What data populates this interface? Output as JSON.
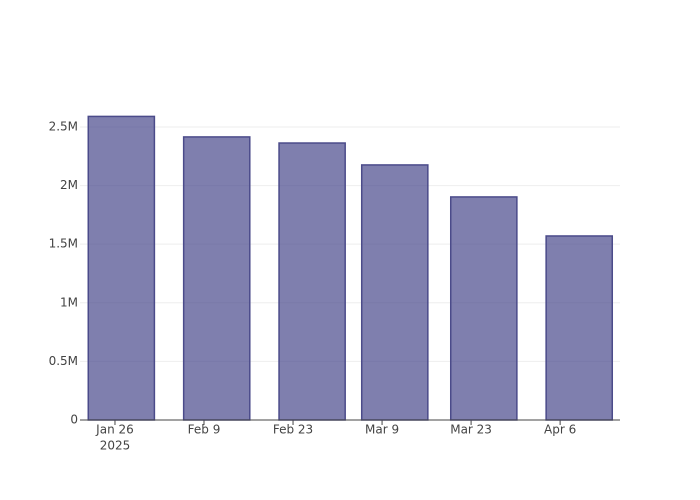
{
  "chart_data": {
    "type": "bar",
    "x": [
      "2025-01-27",
      "2025-02-11",
      "2025-02-26",
      "2025-03-11",
      "2025-03-25",
      "2025-04-09"
    ],
    "values": [
      2590000,
      2415000,
      2363000,
      2176000,
      1903000,
      1570000
    ],
    "color": "rgba(72,72,140,0.7)",
    "edge_color": "#4b4b8a",
    "xlim": [
      "2025-01-20 12:00",
      "2025-04-15 10:00"
    ],
    "xticks": [
      {
        "value": "2025-01-26",
        "label": "Jan 26"
      },
      {
        "value": "2025-02-09",
        "label": "Feb 9"
      },
      {
        "value": "2025-02-23",
        "label": "Feb 23"
      },
      {
        "value": "2025-03-09",
        "label": "Mar 9"
      },
      {
        "value": "2025-03-23",
        "label": "Mar 23"
      },
      {
        "value": "2025-04-06",
        "label": "Apr 6"
      }
    ],
    "x_year_label": "2025",
    "ylim": [
      0,
      2730000
    ],
    "yticks": [
      0,
      {
        "value": 500000,
        "label": "0.5M"
      },
      {
        "value": 1000000,
        "label": "1M"
      },
      {
        "value": 1500000,
        "label": "1.5M"
      },
      {
        "value": 2000000,
        "label": "2M"
      },
      {
        "value": 2500000,
        "label": "2.5M"
      }
    ],
    "grid": true
  }
}
